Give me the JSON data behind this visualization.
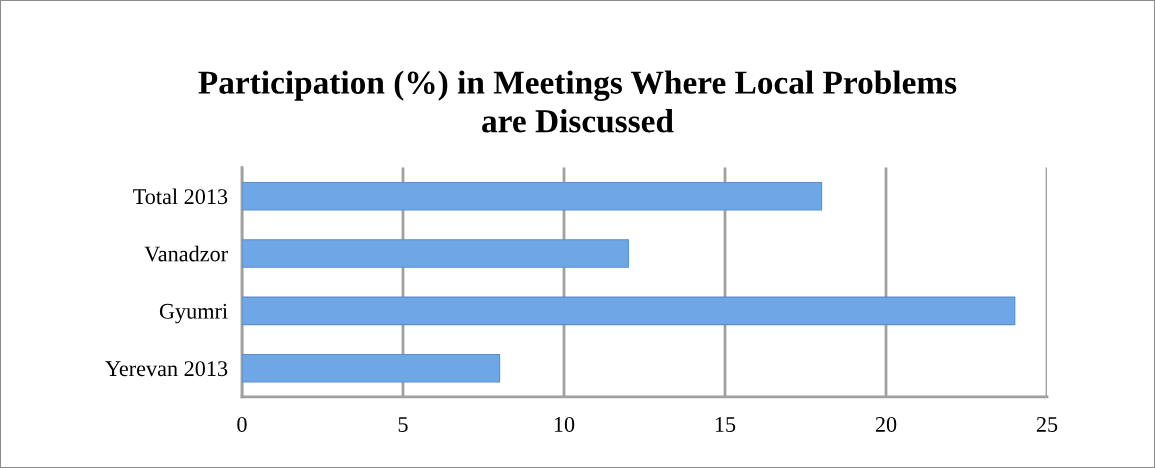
{
  "chart_data": {
    "type": "bar",
    "orientation": "horizontal",
    "title": "Participation (%) in Meetings Where Local Problems\nare Discussed",
    "categories": [
      "Total 2013",
      "Vanadzor",
      "Gyumri",
      "Yerevan 2013"
    ],
    "values": [
      18,
      12,
      24,
      8
    ],
    "color": "#6fa6e6",
    "xlim": [
      0,
      25
    ],
    "xticks": [
      0,
      5,
      10,
      15,
      20,
      25
    ],
    "grid": "x",
    "legend": false
  }
}
